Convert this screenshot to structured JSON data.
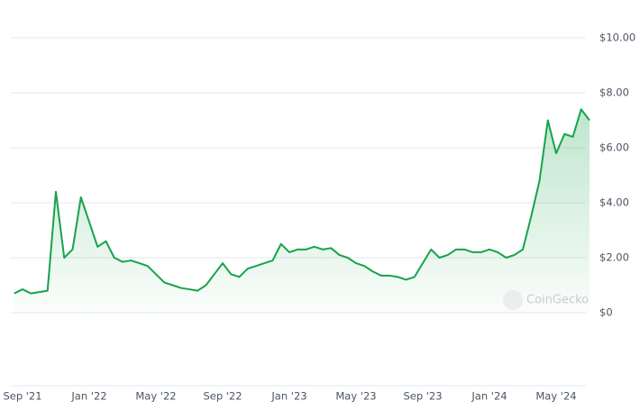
{
  "chart_data": {
    "type": "line",
    "categories": [
      null,
      "Sep '21",
      null,
      null,
      null,
      null,
      null,
      null,
      null,
      "Jan '22",
      null,
      null,
      null,
      null,
      null,
      null,
      null,
      "May '22",
      null,
      null,
      null,
      null,
      null,
      null,
      null,
      "Sep '22",
      null,
      null,
      null,
      null,
      null,
      null,
      null,
      "Jan '23",
      null,
      null,
      null,
      null,
      null,
      null,
      null,
      "May '23",
      null,
      null,
      null,
      null,
      null,
      null,
      null,
      "Sep '23",
      null,
      null,
      null,
      null,
      null,
      null,
      null,
      "Jan '24",
      null,
      null,
      null,
      null,
      null,
      null,
      null,
      "May '24",
      null,
      null,
      null,
      null
    ],
    "values": [
      0.7,
      0.85,
      0.7,
      0.75,
      0.8,
      4.4,
      2.0,
      2.3,
      4.2,
      3.3,
      2.4,
      2.6,
      2.0,
      1.85,
      1.9,
      1.8,
      1.7,
      1.4,
      1.1,
      1.0,
      0.9,
      0.85,
      0.8,
      1.0,
      1.4,
      1.8,
      1.4,
      1.3,
      1.6,
      1.7,
      1.8,
      1.9,
      2.5,
      2.2,
      2.3,
      2.3,
      2.4,
      2.3,
      2.35,
      2.1,
      2.0,
      1.8,
      1.7,
      1.5,
      1.35,
      1.35,
      1.3,
      1.2,
      1.3,
      1.8,
      2.3,
      2.0,
      2.1,
      2.3,
      2.3,
      2.2,
      2.2,
      2.3,
      2.2,
      2.0,
      2.1,
      2.3,
      3.5,
      4.8,
      7.0,
      5.8,
      6.5,
      6.4,
      7.4,
      7.0
    ],
    "color": "#16a34a",
    "ylim": [
      0,
      10
    ],
    "yticks": [
      {
        "value": 0,
        "label": "$0"
      },
      {
        "value": 2,
        "label": "$2.00"
      },
      {
        "value": 4,
        "label": "$4.00"
      },
      {
        "value": 6,
        "label": "$6.00"
      },
      {
        "value": 8,
        "label": "$8.00"
      },
      {
        "value": 10,
        "label": "$10.00"
      }
    ],
    "grid": true,
    "watermark": "CoinGecko"
  }
}
